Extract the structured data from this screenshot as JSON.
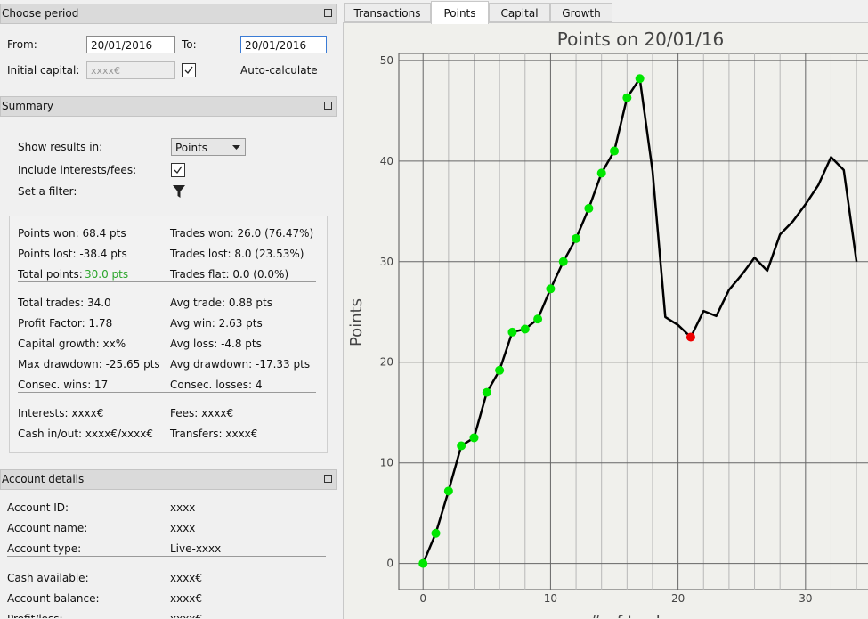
{
  "choose_period": {
    "title": "Choose period",
    "from_label": "From:",
    "from_value": "20/01/2016",
    "to_label": "To:",
    "to_value": "20/01/2016",
    "initial_capital_label": "Initial capital:",
    "initial_capital_value": "xxxx€",
    "auto_calculate": "Auto-calculate"
  },
  "summary": {
    "title": "Summary",
    "show_results_label": "Show results in:",
    "show_results_value": "Points",
    "include_label": "Include interests/fees:",
    "filter_label": "Set a filter:",
    "total_points_label": "Total points:",
    "total_points_value": "30.0 pts",
    "groups": [
      [
        [
          "Points won: 68.4 pts",
          "Trades won: 26.0 (76.47%)"
        ],
        [
          "Points lost: -38.4 pts",
          "Trades lost: 8.0 (23.53%)"
        ],
        [
          null,
          "Trades flat: 0.0 (0.0%)"
        ]
      ],
      [
        [
          "Total trades: 34.0",
          "Avg trade: 0.88 pts"
        ],
        [
          "Profit Factor: 1.78",
          "Avg win: 2.63 pts"
        ],
        [
          "Capital growth: xx%",
          "Avg loss: -4.8 pts"
        ],
        [
          "Max drawdown: -25.65 pts",
          "Avg drawdown: -17.33 pts"
        ],
        [
          "Consec. wins: 17",
          "Consec. losses: 4"
        ]
      ],
      [
        [
          "Interests: xxxx€",
          "Fees: xxxx€"
        ],
        [
          "Cash in/out: xxxx€/xxxx€",
          "Transfers: xxxx€"
        ]
      ]
    ]
  },
  "account": {
    "title": "Account details",
    "groups": [
      [
        [
          "Account ID:",
          "xxxx"
        ],
        [
          "Account name:",
          "xxxx"
        ],
        [
          "Account type:",
          "Live-xxxx"
        ]
      ],
      [
        [
          "Cash available:",
          "xxxx€"
        ],
        [
          "Account balance:",
          "xxxx€"
        ],
        [
          "Profit/loss:",
          "xxxx€"
        ]
      ]
    ]
  },
  "tabs": {
    "items": [
      "Transactions",
      "Points",
      "Capital",
      "Growth"
    ],
    "active": 1
  },
  "chart_data": {
    "type": "line",
    "title": "Points on 20/01/16",
    "ylabel": "Points",
    "xlabel": "# of trades",
    "x": [
      0,
      1,
      2,
      3,
      4,
      5,
      6,
      7,
      8,
      9,
      10,
      11,
      12,
      13,
      14,
      15,
      16,
      17,
      18,
      19,
      20,
      21,
      22,
      23,
      24,
      25,
      26,
      27,
      28,
      29,
      30,
      31,
      32,
      33,
      34
    ],
    "series": [
      {
        "name": "Points",
        "color": "#000000",
        "values": [
          0,
          3.0,
          7.2,
          11.7,
          12.5,
          17.0,
          19.2,
          23.0,
          23.3,
          24.3,
          27.3,
          30.0,
          32.3,
          35.3,
          38.8,
          41.0,
          46.3,
          48.2,
          39.0,
          24.5,
          23.7,
          22.5,
          25.1,
          24.6,
          27.2,
          28.7,
          30.4,
          29.1,
          32.7,
          34.0,
          35.7,
          37.6,
          40.4,
          39.1,
          30.0
        ],
        "marker_colors": [
          "#00e600",
          "#00e600",
          "#00e600",
          "#00e600",
          "#00e600",
          "#00e600",
          "#00e600",
          "#00e600",
          "#00e600",
          "#00e600",
          "#00e600",
          "#00e600",
          "#00e600",
          "#00e600",
          "#00e600",
          "#00e600",
          "#00e600",
          "#00e600",
          null,
          null,
          null,
          "#ee0000",
          null,
          null,
          null,
          null,
          null,
          null,
          null,
          null,
          null,
          null,
          null,
          null,
          null
        ]
      }
    ],
    "xlim": [
      -1.9,
      34.9
    ],
    "ylim": [
      -2.6,
      50.7
    ],
    "xticks": [
      0,
      10,
      20,
      30
    ],
    "yticks": [
      0,
      10,
      20,
      30,
      40,
      50
    ],
    "x_minor_grid": [
      2,
      4,
      6,
      8,
      12,
      14,
      16,
      18,
      22,
      24,
      26,
      28,
      32,
      34
    ],
    "grid": true
  }
}
